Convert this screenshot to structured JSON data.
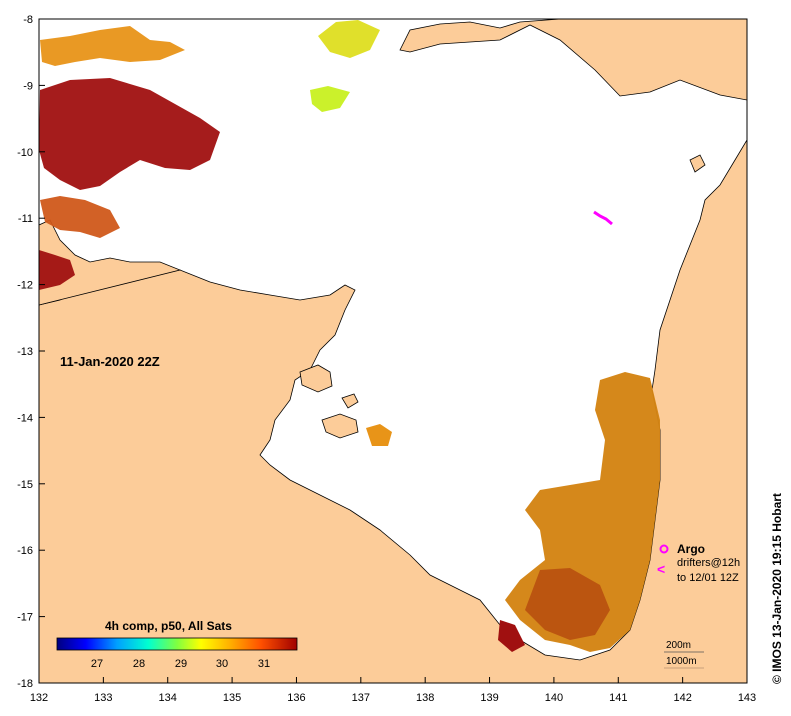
{
  "map": {
    "date_label": "11-Jan-2020 22Z",
    "credit": "© IMOS 13-Jan-2020 19:15 Hobart",
    "x_ticks": [
      "132",
      "133",
      "134",
      "135",
      "136",
      "137",
      "138",
      "139",
      "140",
      "141",
      "142",
      "143"
    ],
    "y_ticks": [
      "-8",
      "-9",
      "-10",
      "-11",
      "-12",
      "-13",
      "-14",
      "-15",
      "-16",
      "-17",
      "-18"
    ],
    "colorbar": {
      "title": "4h comp, p50, All Sats",
      "ticks": [
        "27",
        "28",
        "29",
        "30",
        "31"
      ]
    },
    "legend": {
      "argo_label": "Argo",
      "drifters_line1": "drifters@12h",
      "drifters_line2": "to 12/01 12Z",
      "contour_200": "200m",
      "contour_1000": "1000m"
    },
    "colors": {
      "land": "#fccc99",
      "sea": "#ffffff",
      "markers": "#ff00ff"
    }
  }
}
